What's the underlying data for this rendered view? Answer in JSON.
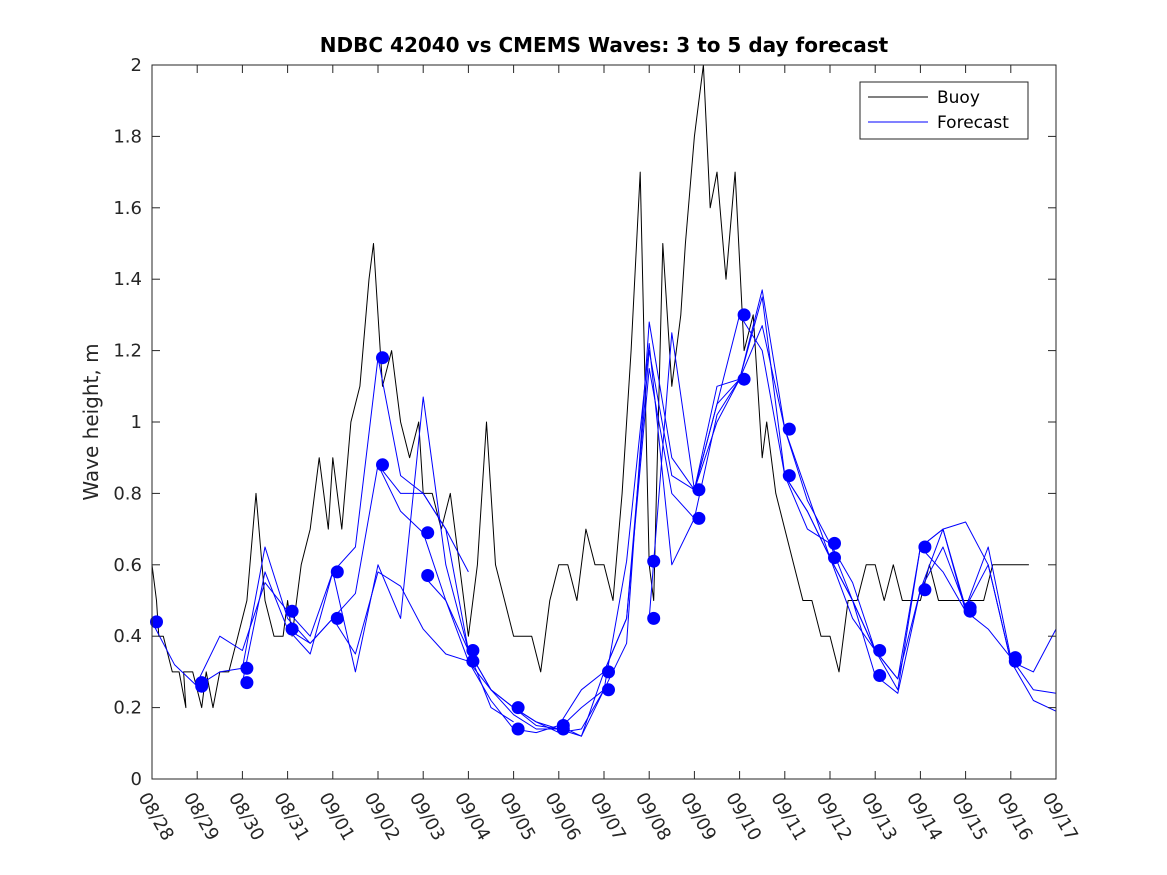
{
  "chart_data": {
    "type": "line",
    "title": "NDBC 42040 vs CMEMS Waves: 3 to 5 day forecast",
    "xlabel": "",
    "ylabel": "Wave height, m",
    "ylim": [
      0,
      2
    ],
    "xlim": [
      0,
      20
    ],
    "yticks": [
      0,
      0.2,
      0.4,
      0.6,
      0.8,
      1,
      1.2,
      1.4,
      1.6,
      1.8,
      2
    ],
    "ytick_labels": [
      "0",
      "0.2",
      "0.4",
      "0.6",
      "0.8",
      "1",
      "1.2",
      "1.4",
      "1.6",
      "1.8",
      "2"
    ],
    "xtick_labels": [
      "08/28",
      "08/29",
      "08/30",
      "08/31",
      "09/01",
      "09/02",
      "09/03",
      "09/04",
      "09/05",
      "09/06",
      "09/07",
      "09/08",
      "09/09",
      "09/10",
      "09/11",
      "09/12",
      "09/13",
      "09/14",
      "09/15",
      "09/16",
      "09/17"
    ],
    "legend": {
      "position": "top-right",
      "entries": [
        "Buoy",
        "Forecast"
      ]
    },
    "colors": {
      "buoy": "#000000",
      "forecast": "#0000ff",
      "axis": "#262626"
    },
    "series": [
      {
        "name": "Buoy",
        "x": [
          0,
          0.1,
          0.15,
          0.25,
          0.45,
          0.6,
          0.75,
          0.7,
          0.9,
          1.1,
          1.2,
          1.35,
          1.5,
          1.7,
          1.9,
          2.1,
          2.3,
          2.5,
          2.7,
          2.9,
          3.0,
          3.1,
          3.2,
          3.3,
          3.5,
          3.7,
          3.9,
          4.0,
          4.2,
          4.4,
          4.6,
          4.8,
          4.9,
          5.0,
          5.1,
          5.3,
          5.5,
          5.7,
          5.9,
          6.0,
          6.2,
          6.4,
          6.6,
          6.8,
          7.0,
          7.2,
          7.4,
          7.6,
          7.8,
          8.0,
          8.2,
          8.4,
          8.6,
          8.8,
          9.0,
          9.2,
          9.4,
          9.6,
          9.8,
          10.0,
          10.2,
          10.4,
          10.6,
          10.8,
          11.0,
          11.1,
          11.3,
          11.5,
          11.7,
          11.8,
          12.0,
          12.2,
          12.35,
          12.5,
          12.7,
          12.9,
          13.1,
          13.3,
          13.5,
          13.6,
          13.8,
          14.0,
          14.2,
          14.4,
          14.6,
          14.8,
          15.0,
          15.2,
          15.4,
          15.6,
          15.8,
          16.0,
          16.2,
          16.4,
          16.6,
          16.8,
          17.0,
          17.2,
          17.4,
          17.6,
          17.8,
          18.0,
          18.2,
          18.4,
          18.6,
          18.8,
          19.0,
          19.2,
          19.4
        ],
        "values": [
          0.6,
          0.5,
          0.4,
          0.4,
          0.3,
          0.3,
          0.2,
          0.3,
          0.3,
          0.2,
          0.3,
          0.2,
          0.3,
          0.3,
          0.4,
          0.5,
          0.8,
          0.5,
          0.4,
          0.4,
          0.5,
          0.4,
          0.5,
          0.6,
          0.7,
          0.9,
          0.7,
          0.9,
          0.7,
          1.0,
          1.1,
          1.4,
          1.5,
          1.3,
          1.1,
          1.2,
          1.0,
          0.9,
          1.0,
          0.8,
          0.8,
          0.7,
          0.8,
          0.6,
          0.4,
          0.6,
          1.0,
          0.6,
          0.5,
          0.4,
          0.4,
          0.4,
          0.3,
          0.5,
          0.6,
          0.6,
          0.5,
          0.7,
          0.6,
          0.6,
          0.5,
          0.8,
          1.2,
          1.7,
          0.6,
          0.5,
          1.5,
          1.1,
          1.3,
          1.5,
          1.8,
          2.0,
          1.6,
          1.7,
          1.4,
          1.7,
          1.2,
          1.3,
          0.9,
          1.0,
          0.8,
          0.7,
          0.6,
          0.5,
          0.5,
          0.4,
          0.4,
          0.3,
          0.5,
          0.5,
          0.6,
          0.6,
          0.5,
          0.6,
          0.5,
          0.5,
          0.5,
          0.6,
          0.5,
          0.5,
          0.5,
          0.5,
          0.5,
          0.5,
          0.6,
          0.6,
          0.6,
          0.6,
          0.6
        ]
      },
      {
        "name": "Forecast",
        "x": [
          0,
          0.5,
          1,
          1.5,
          2,
          2.5,
          3,
          3.5,
          4,
          4.5,
          5,
          5.5,
          6,
          6.5,
          7
        ],
        "values": [
          0.44,
          0.32,
          0.26,
          0.3,
          0.31,
          0.65,
          0.45,
          0.38,
          0.45,
          0.52,
          0.88,
          0.8,
          0.8,
          0.7,
          0.58
        ]
      },
      {
        "name": "Forecast",
        "x": [
          1,
          1.5,
          2,
          2.5,
          3,
          3.5,
          4,
          4.5,
          5,
          5.5,
          6,
          6.5,
          7,
          7.5,
          8
        ],
        "values": [
          0.27,
          0.4,
          0.36,
          0.55,
          0.47,
          0.4,
          0.58,
          0.65,
          1.18,
          0.85,
          0.8,
          0.7,
          0.36,
          0.2,
          0.16
        ]
      },
      {
        "name": "Forecast",
        "x": [
          2,
          2.5,
          3,
          3.5,
          4,
          4.5,
          5,
          5.5,
          6,
          6.5,
          7,
          7.5,
          8,
          8.5,
          9
        ],
        "values": [
          0.27,
          0.58,
          0.42,
          0.38,
          0.45,
          0.35,
          0.58,
          0.54,
          0.42,
          0.35,
          0.33,
          0.25,
          0.18,
          0.14,
          0.14
        ]
      },
      {
        "name": "Forecast",
        "x": [
          3,
          3.5,
          4,
          4.5,
          5,
          5.5,
          6,
          6.5,
          7,
          7.5,
          8,
          8.5,
          9,
          9.5,
          10
        ],
        "values": [
          0.42,
          0.35,
          0.58,
          0.3,
          0.6,
          0.45,
          1.07,
          0.6,
          0.36,
          0.25,
          0.2,
          0.16,
          0.13,
          0.14,
          0.25
        ]
      },
      {
        "name": "Forecast",
        "x": [
          5,
          5.5,
          6,
          6.5,
          7,
          7.5,
          8,
          8.5,
          9,
          9.5,
          10,
          10.5,
          11,
          11.5,
          12
        ],
        "values": [
          0.88,
          0.75,
          0.69,
          0.5,
          0.33,
          0.22,
          0.14,
          0.13,
          0.15,
          0.25,
          0.3,
          0.45,
          1.15,
          0.8,
          0.73
        ]
      },
      {
        "name": "Forecast",
        "x": [
          6,
          6.5,
          7,
          7.5,
          8,
          8.5,
          9,
          9.5,
          10,
          10.5,
          11,
          11.5,
          12,
          12.5,
          13
        ],
        "values": [
          0.57,
          0.5,
          0.36,
          0.25,
          0.2,
          0.15,
          0.14,
          0.2,
          0.25,
          0.38,
          1.28,
          0.9,
          0.81,
          1.0,
          1.12
        ]
      },
      {
        "name": "Forecast",
        "x": [
          8,
          8.5,
          9,
          9.5,
          10,
          10.5,
          11,
          11.5,
          12,
          12.5,
          13,
          13.5,
          14,
          14.5,
          15
        ],
        "values": [
          0.2,
          0.16,
          0.14,
          0.12,
          0.3,
          0.45,
          1.2,
          0.85,
          0.81,
          1.05,
          1.3,
          1.2,
          0.85,
          0.75,
          0.62
        ]
      },
      {
        "name": "Forecast",
        "x": [
          9,
          9.5,
          10,
          10.5,
          11,
          11.5,
          12,
          12.5,
          13,
          13.5,
          14,
          14.5,
          15,
          15.5,
          16
        ],
        "values": [
          0.15,
          0.12,
          0.25,
          0.61,
          1.22,
          0.6,
          0.73,
          1.02,
          1.12,
          1.37,
          0.98,
          0.78,
          0.66,
          0.5,
          0.36
        ]
      },
      {
        "name": "Forecast",
        "x": [
          11,
          11.5,
          12,
          12.5,
          13,
          13.5,
          14,
          14.5,
          15,
          15.5,
          16,
          16.5,
          17,
          17.5,
          18
        ],
        "values": [
          0.45,
          1.25,
          0.81,
          1.05,
          1.12,
          1.27,
          0.98,
          0.8,
          0.62,
          0.45,
          0.36,
          0.25,
          0.65,
          0.58,
          0.47
        ]
      },
      {
        "name": "Forecast",
        "x": [
          12,
          12.5,
          13,
          13.5,
          14,
          14.5,
          15,
          15.5,
          16,
          16.5,
          17,
          17.5,
          18,
          18.5,
          19
        ],
        "values": [
          0.81,
          1.1,
          1.12,
          1.35,
          0.85,
          0.75,
          0.62,
          0.5,
          0.36,
          0.28,
          0.53,
          0.7,
          0.47,
          0.42,
          0.34
        ]
      },
      {
        "name": "Forecast",
        "x": [
          14,
          14.5,
          15,
          15.5,
          16,
          16.5,
          17,
          17.5,
          18,
          18.5,
          19,
          19.5,
          20
        ],
        "values": [
          0.85,
          0.7,
          0.66,
          0.55,
          0.36,
          0.28,
          0.65,
          0.7,
          0.72,
          0.6,
          0.33,
          0.22,
          0.19
        ]
      },
      {
        "name": "Forecast",
        "x": [
          15,
          15.5,
          16,
          16.5,
          17,
          17.5,
          18,
          18.5,
          19,
          19.5,
          20
        ],
        "values": [
          0.62,
          0.5,
          0.29,
          0.24,
          0.53,
          0.65,
          0.48,
          0.6,
          0.33,
          0.3,
          0.42
        ]
      },
      {
        "name": "Forecast",
        "x": [
          17,
          17.5,
          18,
          18.5,
          19,
          19.5,
          20
        ],
        "values": [
          0.65,
          0.7,
          0.48,
          0.65,
          0.34,
          0.25,
          0.24
        ]
      }
    ],
    "markers": {
      "name": "Forecast start points",
      "x": [
        0.1,
        1.1,
        1.1,
        2.1,
        2.1,
        3.1,
        3.1,
        4.1,
        4.1,
        5.1,
        5.1,
        6.1,
        6.1,
        7.1,
        7.1,
        8.1,
        8.1,
        9.1,
        9.1,
        10.1,
        10.1,
        11.1,
        11.1,
        12.1,
        12.1,
        13.1,
        13.1,
        14.1,
        14.1,
        15.1,
        15.1,
        16.1,
        16.1,
        17.1,
        17.1,
        18.1,
        18.1,
        19.1,
        19.1
      ],
      "values": [
        0.44,
        0.27,
        0.26,
        0.31,
        0.27,
        0.47,
        0.42,
        0.58,
        0.45,
        1.18,
        0.88,
        0.69,
        0.57,
        0.36,
        0.33,
        0.2,
        0.14,
        0.15,
        0.14,
        0.3,
        0.25,
        0.61,
        0.45,
        0.81,
        0.73,
        1.3,
        1.12,
        0.98,
        0.85,
        0.66,
        0.62,
        0.36,
        0.29,
        0.65,
        0.53,
        0.48,
        0.47,
        0.34,
        0.33
      ]
    }
  }
}
